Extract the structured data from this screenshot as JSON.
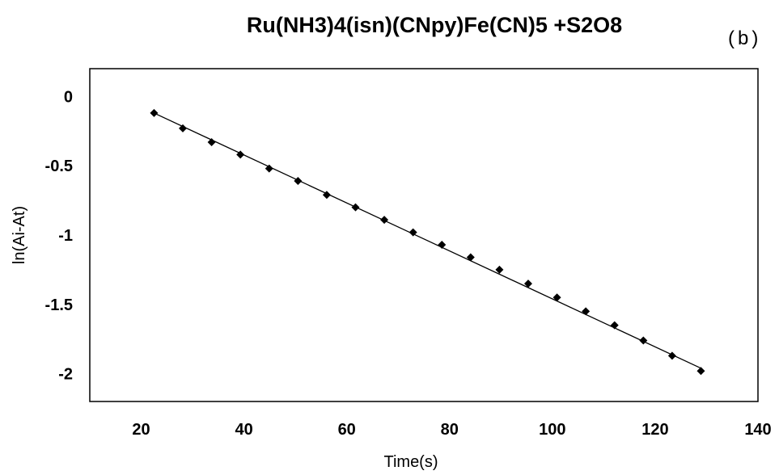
{
  "chart_data": {
    "type": "scatter",
    "title": "Ru(NH3)4(isn)(CNpy)Fe(CN)5 +S2O8",
    "panel_label": "(b)",
    "xlabel": "Time(s)",
    "ylabel": "ln(Ai-At)",
    "xlim": [
      10,
      140
    ],
    "ylim": [
      -2.2,
      0.2
    ],
    "x_ticks": [
      20,
      40,
      60,
      80,
      100,
      120,
      140
    ],
    "y_ticks": [
      0,
      -0.5,
      -1,
      -1.5,
      -2
    ],
    "x_tick_labels": [
      "20",
      "40",
      "60",
      "80",
      "100",
      "120",
      "140"
    ],
    "y_tick_labels": [
      "0",
      "-0.5",
      "-1",
      "-1.5",
      "-2"
    ],
    "grid": false,
    "marker": "diamond",
    "color": "#000000",
    "series": [
      {
        "x": [
          22.5,
          28.1,
          33.7,
          39.3,
          44.9,
          50.5,
          56.1,
          61.7,
          67.3,
          72.9,
          78.5,
          84.1,
          89.7,
          95.3,
          100.9,
          106.5,
          112.1,
          117.7,
          123.3,
          128.9
        ],
        "y": [
          -0.12,
          -0.23,
          -0.33,
          -0.42,
          -0.52,
          -0.61,
          -0.71,
          -0.8,
          -0.89,
          -0.98,
          -1.07,
          -1.16,
          -1.25,
          -1.35,
          -1.45,
          -1.55,
          -1.65,
          -1.76,
          -1.87,
          -1.98
        ]
      }
    ],
    "fit_line": {
      "x": [
        22.5,
        128.9
      ],
      "y": [
        -0.12,
        -1.96
      ]
    }
  }
}
